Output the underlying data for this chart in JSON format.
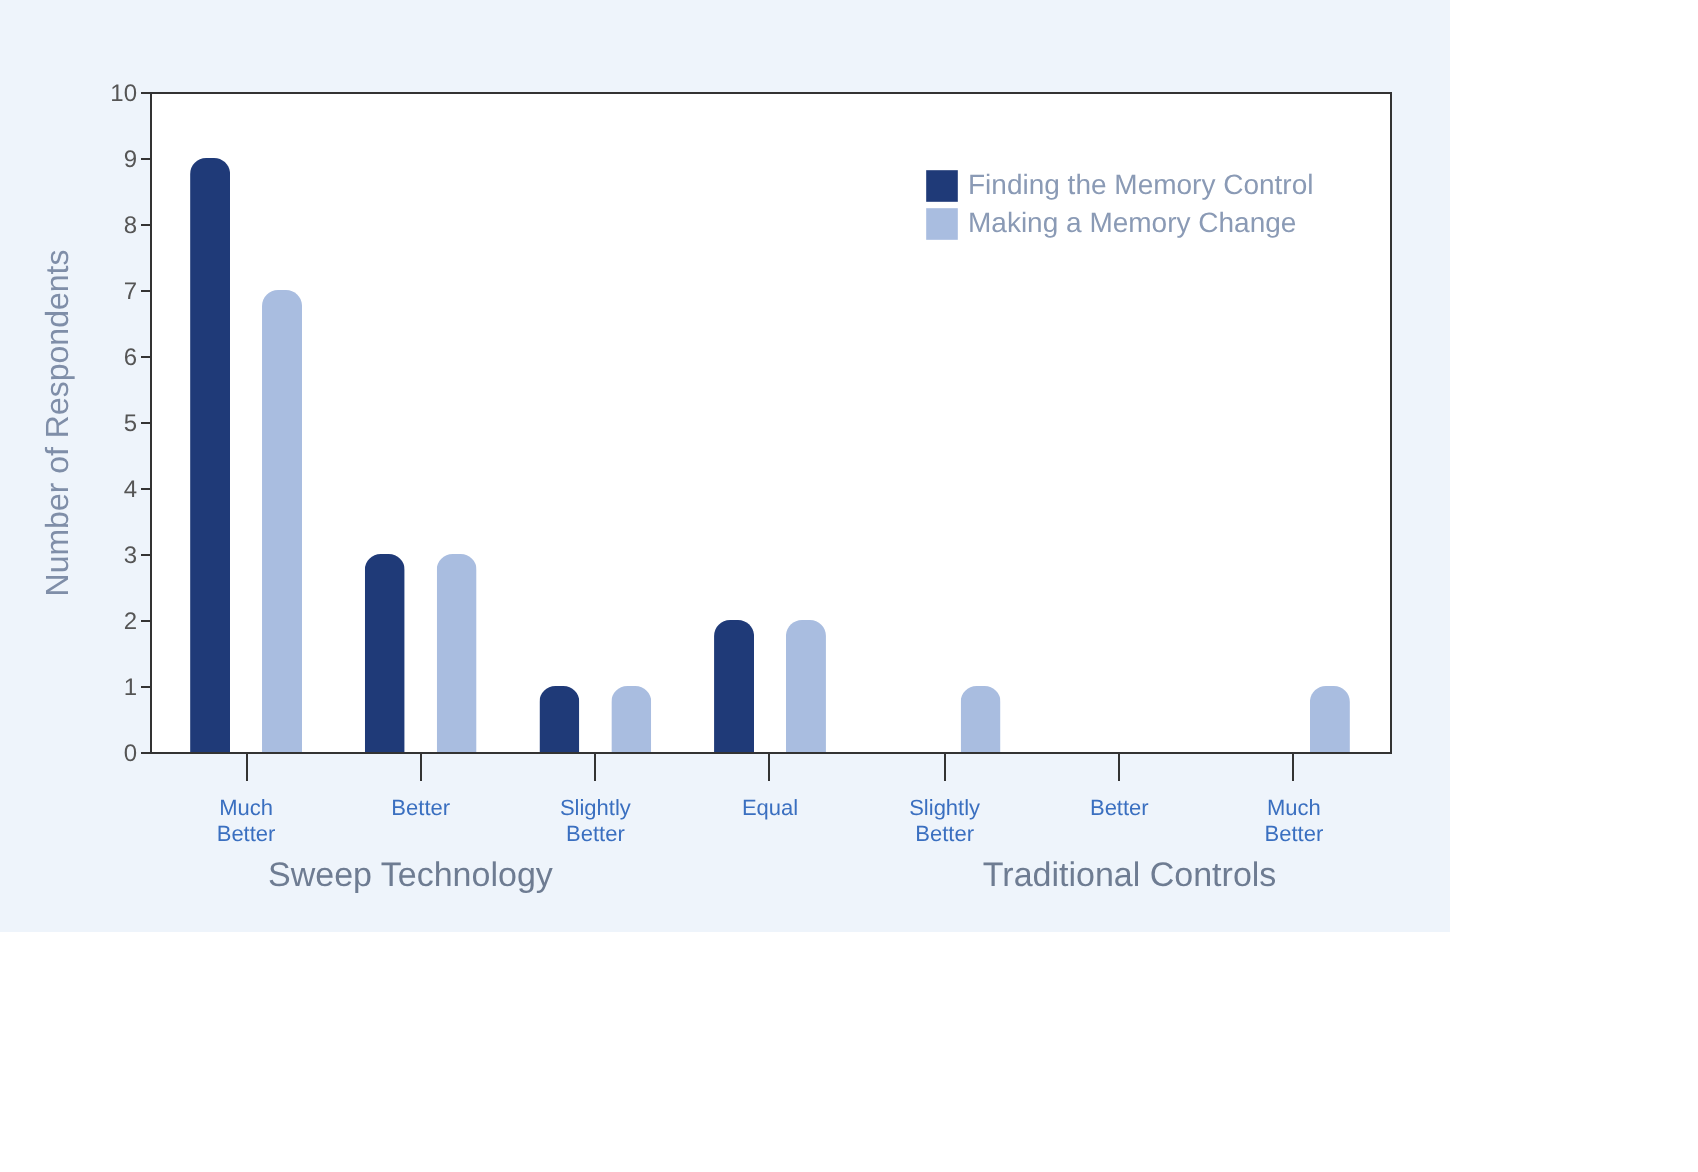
{
  "chart_data": {
    "type": "bar",
    "ylabel": "Number of Respondents",
    "categories": [
      "Much Better",
      "Better",
      "Slightly Better",
      "Equal",
      "Slightly Better",
      "Better",
      "Much Better"
    ],
    "series": [
      {
        "name": "Finding the Memory Control",
        "color": "#1f3a78",
        "values": [
          9,
          3,
          1,
          2,
          0,
          0,
          0
        ]
      },
      {
        "name": "Making a Memory Change",
        "color": "#a9bde0",
        "values": [
          7,
          3,
          1,
          2,
          1,
          0,
          1
        ]
      }
    ],
    "ylim": [
      0,
      10
    ],
    "yticks": [
      0,
      1,
      2,
      3,
      4,
      5,
      6,
      7,
      8,
      9,
      10
    ],
    "annotations": [
      "Sweep Technology",
      "Traditional Controls"
    ],
    "grid": false,
    "legend": "top right"
  }
}
